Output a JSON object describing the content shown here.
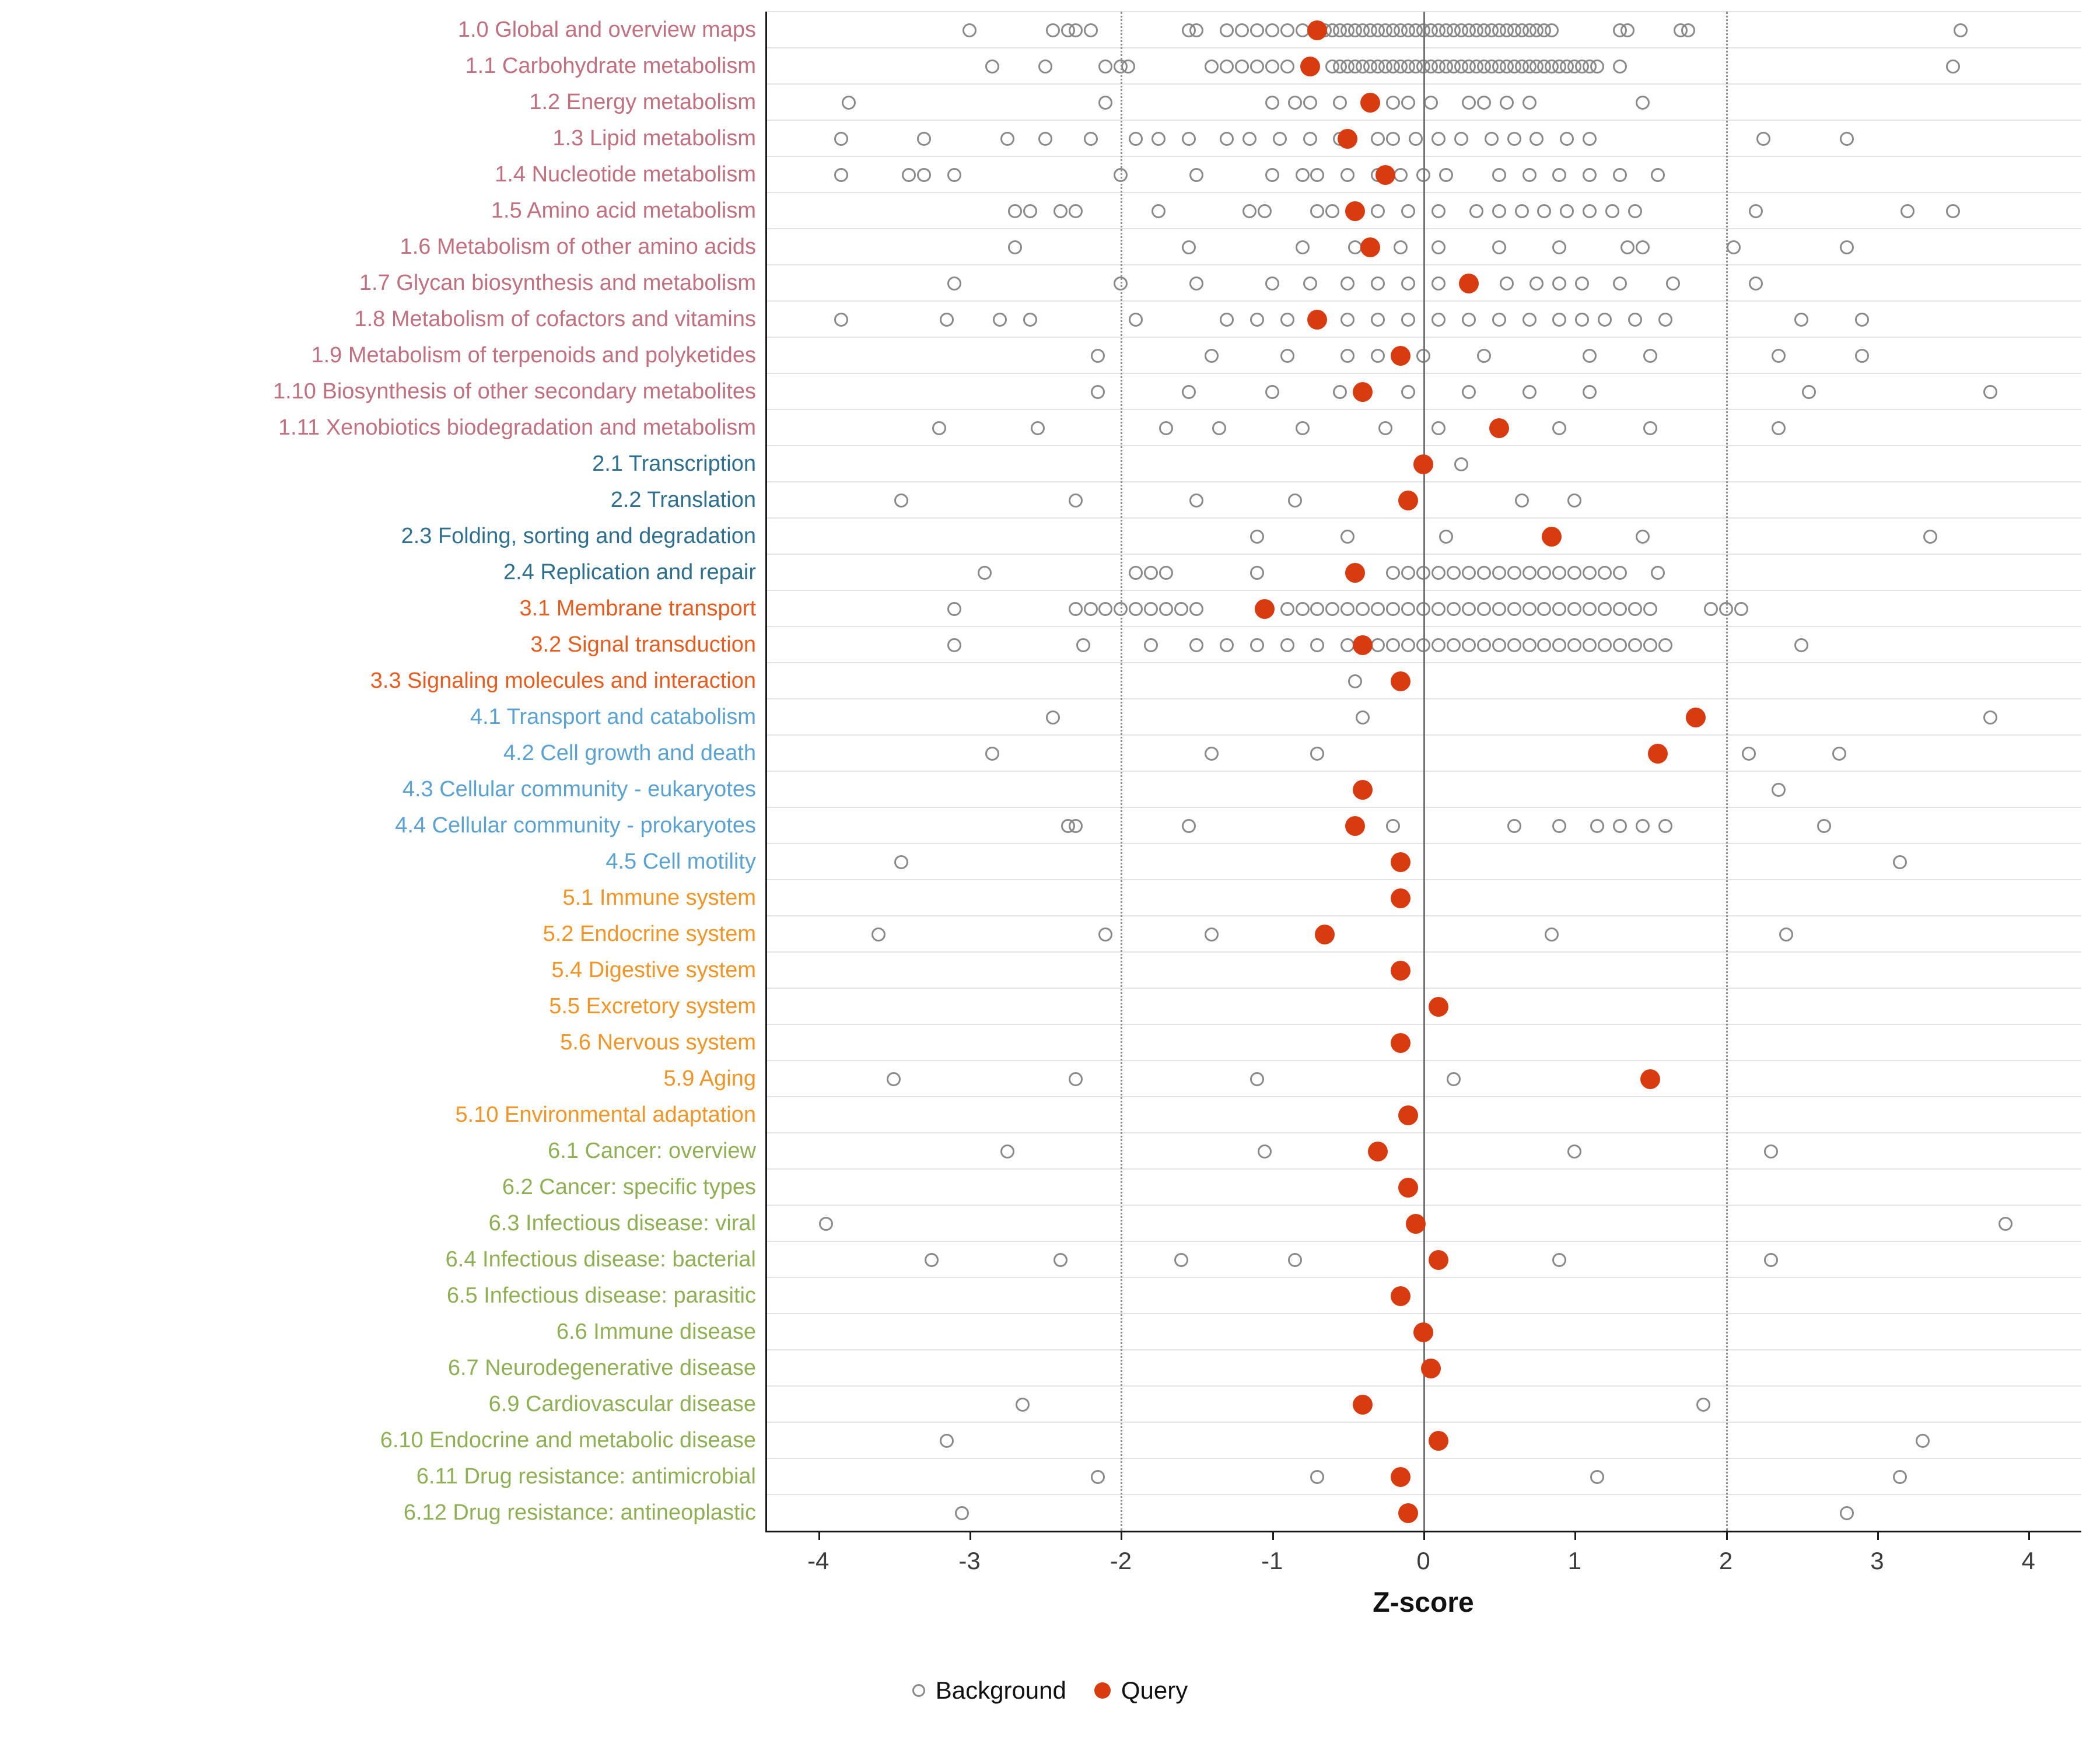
{
  "chart_data": {
    "type": "scatter",
    "title": "",
    "xlabel": "Z-score",
    "ylabel": "",
    "xlim": [
      -4.35,
      4.35
    ],
    "x_ticks": [
      -4,
      -3,
      -2,
      -1,
      0,
      1,
      2,
      3,
      4
    ],
    "reference_lines": {
      "solid": [
        0
      ],
      "dotted": [
        -2,
        2
      ]
    },
    "grid": "horizontal-light",
    "legend_position": "bottom",
    "legend": [
      {
        "label": "Background",
        "type": "open-circle",
        "color": "#8a8a8a"
      },
      {
        "label": "Query",
        "type": "filled-circle",
        "color": "#d93b10"
      }
    ],
    "colors": {
      "g1": "#c0707e",
      "g2": "#2e6f8e",
      "g3": "#e65c1e",
      "g4": "#5ba2d0",
      "g5": "#f09526",
      "g6": "#8faf54",
      "query": "#d93b10",
      "background_stroke": "#8a8a8a",
      "gridline": "#e3e3e3",
      "ref_solid": "#737373",
      "ref_dotted": "#8f8f8f",
      "axis": "#1a1a1a"
    },
    "rows": [
      {
        "label": "1.0 Global and overview maps",
        "group": "g1",
        "query": -0.7,
        "background": [
          -3.0,
          -2.45,
          -2.35,
          -2.3,
          -2.2,
          -1.55,
          -1.5,
          -1.3,
          -1.2,
          -1.1,
          -1.0,
          -0.9,
          -0.8,
          -0.7,
          -0.65,
          -0.6,
          -0.55,
          -0.5,
          -0.45,
          -0.4,
          -0.35,
          -0.3,
          -0.25,
          -0.2,
          -0.15,
          -0.1,
          -0.05,
          0,
          0.05,
          0.1,
          0.15,
          0.2,
          0.25,
          0.3,
          0.35,
          0.4,
          0.45,
          0.5,
          0.55,
          0.6,
          0.65,
          0.7,
          0.75,
          0.8,
          0.85,
          1.3,
          1.35,
          1.7,
          1.75,
          3.55
        ]
      },
      {
        "label": "1.1 Carbohydrate metabolism",
        "group": "g1",
        "query": -0.75,
        "background": [
          -2.85,
          -2.5,
          -2.1,
          -2.0,
          -1.95,
          -1.4,
          -1.3,
          -1.2,
          -1.1,
          -1.0,
          -0.9,
          -0.6,
          -0.55,
          -0.5,
          -0.45,
          -0.4,
          -0.35,
          -0.3,
          -0.25,
          -0.2,
          -0.15,
          -0.1,
          -0.05,
          0,
          0.05,
          0.1,
          0.15,
          0.2,
          0.25,
          0.3,
          0.35,
          0.4,
          0.45,
          0.5,
          0.55,
          0.6,
          0.65,
          0.7,
          0.75,
          0.8,
          0.85,
          0.9,
          0.95,
          1.0,
          1.05,
          1.1,
          1.15,
          1.3,
          3.5
        ]
      },
      {
        "label": "1.2 Energy metabolism",
        "group": "g1",
        "query": -0.35,
        "background": [
          -3.8,
          -2.1,
          -1.0,
          -0.85,
          -0.75,
          -0.55,
          -0.2,
          -0.1,
          0.05,
          0.3,
          0.4,
          0.55,
          0.7,
          1.45
        ]
      },
      {
        "label": "1.3 Lipid metabolism",
        "group": "g1",
        "query": -0.5,
        "background": [
          -3.85,
          -3.3,
          -2.75,
          -2.5,
          -2.2,
          -1.9,
          -1.75,
          -1.55,
          -1.3,
          -1.15,
          -0.95,
          -0.75,
          -0.55,
          -0.3,
          -0.2,
          -0.05,
          0.1,
          0.25,
          0.45,
          0.6,
          0.75,
          0.95,
          1.1,
          2.25,
          2.8
        ]
      },
      {
        "label": "1.4 Nucleotide metabolism",
        "group": "g1",
        "query": -0.25,
        "background": [
          -3.85,
          -3.4,
          -3.3,
          -3.1,
          -2.0,
          -1.5,
          -1.0,
          -0.8,
          -0.7,
          -0.5,
          -0.3,
          -0.15,
          0,
          0.15,
          0.5,
          0.7,
          0.9,
          1.1,
          1.3,
          1.55
        ]
      },
      {
        "label": "1.5 Amino acid metabolism",
        "group": "g1",
        "query": -0.45,
        "background": [
          -2.7,
          -2.6,
          -2.4,
          -2.3,
          -1.75,
          -1.15,
          -1.05,
          -0.7,
          -0.6,
          -0.3,
          -0.1,
          0.1,
          0.35,
          0.5,
          0.65,
          0.8,
          0.95,
          1.1,
          1.25,
          1.4,
          2.2,
          3.2,
          3.5
        ]
      },
      {
        "label": "1.6 Metabolism of other amino acids",
        "group": "g1",
        "query": -0.35,
        "background": [
          -2.7,
          -1.55,
          -0.8,
          -0.45,
          -0.15,
          0.1,
          0.5,
          0.9,
          1.35,
          1.45,
          2.05,
          2.8
        ]
      },
      {
        "label": "1.7 Glycan biosynthesis and metabolism",
        "group": "g1",
        "query": 0.3,
        "background": [
          -3.1,
          -2.0,
          -1.5,
          -1.0,
          -0.75,
          -0.5,
          -0.3,
          -0.1,
          0.1,
          0.55,
          0.75,
          0.9,
          1.05,
          1.3,
          1.65,
          2.2
        ]
      },
      {
        "label": "1.8 Metabolism of cofactors and vitamins",
        "group": "g1",
        "query": -0.7,
        "background": [
          -3.85,
          -3.15,
          -2.8,
          -2.6,
          -1.9,
          -1.3,
          -1.1,
          -0.9,
          -0.5,
          -0.3,
          -0.1,
          0.1,
          0.3,
          0.5,
          0.7,
          0.9,
          1.05,
          1.2,
          1.4,
          1.6,
          2.5,
          2.9
        ]
      },
      {
        "label": "1.9 Metabolism of terpenoids and polyketides",
        "group": "g1",
        "query": -0.15,
        "background": [
          -2.15,
          -1.4,
          -0.9,
          -0.5,
          -0.3,
          0,
          0.4,
          1.1,
          1.5,
          2.35,
          2.9
        ]
      },
      {
        "label": "1.10 Biosynthesis of other secondary metabolites",
        "group": "g1",
        "query": -0.4,
        "background": [
          -2.15,
          -1.55,
          -1.0,
          -0.55,
          -0.1,
          0.3,
          0.7,
          1.1,
          2.55,
          3.75
        ]
      },
      {
        "label": "1.11 Xenobiotics biodegradation and metabolism",
        "group": "g1",
        "query": 0.5,
        "background": [
          -3.2,
          -2.55,
          -1.7,
          -1.35,
          -0.8,
          -0.25,
          0.1,
          0.9,
          1.5,
          2.35
        ]
      },
      {
        "label": "2.1 Transcription",
        "group": "g2",
        "query": 0,
        "background": [
          0.25
        ]
      },
      {
        "label": "2.2 Translation",
        "group": "g2",
        "query": -0.1,
        "background": [
          -3.45,
          -2.3,
          -1.5,
          -0.85,
          0.65,
          1.0
        ]
      },
      {
        "label": "2.3 Folding, sorting and degradation",
        "group": "g2",
        "query": 0.85,
        "background": [
          -1.1,
          -0.5,
          0.15,
          1.45,
          3.35
        ]
      },
      {
        "label": "2.4 Replication and repair",
        "group": "g2",
        "query": -0.45,
        "background": [
          -2.9,
          -1.9,
          -1.8,
          -1.7,
          -1.1,
          -0.2,
          -0.1,
          0,
          0.1,
          0.2,
          0.3,
          0.4,
          0.5,
          0.6,
          0.7,
          0.8,
          0.9,
          1.0,
          1.1,
          1.2,
          1.3,
          1.55
        ]
      },
      {
        "label": "3.1 Membrane transport",
        "group": "g3",
        "query": -1.05,
        "background": [
          -3.1,
          -2.3,
          -2.2,
          -2.1,
          -2.0,
          -1.9,
          -1.8,
          -1.7,
          -1.6,
          -1.5,
          -0.9,
          -0.8,
          -0.7,
          -0.6,
          -0.5,
          -0.4,
          -0.3,
          -0.2,
          -0.1,
          0,
          0.1,
          0.2,
          0.3,
          0.4,
          0.5,
          0.6,
          0.7,
          0.8,
          0.9,
          1.0,
          1.1,
          1.2,
          1.3,
          1.4,
          1.5,
          1.9,
          2.0,
          2.1
        ]
      },
      {
        "label": "3.2 Signal transduction",
        "group": "g3",
        "query": -0.4,
        "background": [
          -3.1,
          -2.25,
          -1.8,
          -1.5,
          -1.3,
          -1.1,
          -0.9,
          -0.7,
          -0.5,
          -0.4,
          -0.3,
          -0.2,
          -0.1,
          0,
          0.1,
          0.2,
          0.3,
          0.4,
          0.5,
          0.6,
          0.7,
          0.8,
          0.9,
          1.0,
          1.1,
          1.2,
          1.3,
          1.4,
          1.5,
          1.6,
          2.5
        ]
      },
      {
        "label": "3.3 Signaling molecules and interaction",
        "group": "g3",
        "query": -0.15,
        "background": [
          -0.45
        ]
      },
      {
        "label": "4.1 Transport and catabolism",
        "group": "g4",
        "query": 1.8,
        "background": [
          -2.45,
          -0.4,
          3.75
        ]
      },
      {
        "label": "4.2 Cell growth and death",
        "group": "g4",
        "query": 1.55,
        "background": [
          -2.85,
          -1.4,
          -0.7,
          2.15,
          2.75
        ]
      },
      {
        "label": "4.3 Cellular community - eukaryotes",
        "group": "g4",
        "query": -0.4,
        "background": [
          2.35
        ]
      },
      {
        "label": "4.4 Cellular community - prokaryotes",
        "group": "g4",
        "query": -0.45,
        "background": [
          -2.35,
          -2.3,
          -1.55,
          -0.2,
          0.6,
          0.9,
          1.15,
          1.3,
          1.45,
          1.6,
          2.65
        ]
      },
      {
        "label": "4.5 Cell motility",
        "group": "g4",
        "query": -0.15,
        "background": [
          -3.45,
          3.15
        ]
      },
      {
        "label": "5.1 Immune system",
        "group": "g5",
        "query": -0.15,
        "background": []
      },
      {
        "label": "5.2 Endocrine system",
        "group": "g5",
        "query": -0.65,
        "background": [
          -3.6,
          -2.1,
          -1.4,
          0.85,
          2.4
        ]
      },
      {
        "label": "5.4 Digestive system",
        "group": "g5",
        "query": -0.15,
        "background": []
      },
      {
        "label": "5.5 Excretory system",
        "group": "g5",
        "query": 0.1,
        "background": []
      },
      {
        "label": "5.6 Nervous system",
        "group": "g5",
        "query": -0.15,
        "background": []
      },
      {
        "label": "5.9 Aging",
        "group": "g5",
        "query": 1.5,
        "background": [
          -3.5,
          -2.3,
          -1.1,
          0.2
        ]
      },
      {
        "label": "5.10 Environmental adaptation",
        "group": "g5",
        "query": -0.1,
        "background": []
      },
      {
        "label": "6.1 Cancer: overview",
        "group": "g6",
        "query": -0.3,
        "background": [
          -2.75,
          -1.05,
          1.0,
          2.3
        ]
      },
      {
        "label": "6.2 Cancer: specific types",
        "group": "g6",
        "query": -0.1,
        "background": []
      },
      {
        "label": "6.3 Infectious disease: viral",
        "group": "g6",
        "query": -0.05,
        "background": [
          -3.95,
          3.85
        ]
      },
      {
        "label": "6.4 Infectious disease: bacterial",
        "group": "g6",
        "query": 0.1,
        "background": [
          -3.25,
          -2.4,
          -1.6,
          -0.85,
          0.9,
          2.3
        ]
      },
      {
        "label": "6.5 Infectious disease: parasitic",
        "group": "g6",
        "query": -0.15,
        "background": []
      },
      {
        "label": "6.6 Immune disease",
        "group": "g6",
        "query": 0,
        "background": []
      },
      {
        "label": "6.7 Neurodegenerative disease",
        "group": "g6",
        "query": 0.05,
        "background": []
      },
      {
        "label": "6.9 Cardiovascular disease",
        "group": "g6",
        "query": -0.4,
        "background": [
          -2.65,
          1.85
        ]
      },
      {
        "label": "6.10 Endocrine and metabolic disease",
        "group": "g6",
        "query": 0.1,
        "background": [
          -3.15,
          3.3
        ]
      },
      {
        "label": "6.11 Drug resistance: antimicrobial",
        "group": "g6",
        "query": -0.15,
        "background": [
          -2.15,
          -0.7,
          1.15,
          3.15
        ]
      },
      {
        "label": "6.12 Drug resistance: antineoplastic",
        "group": "g6",
        "query": -0.1,
        "background": [
          -3.05,
          2.8
        ]
      }
    ]
  }
}
